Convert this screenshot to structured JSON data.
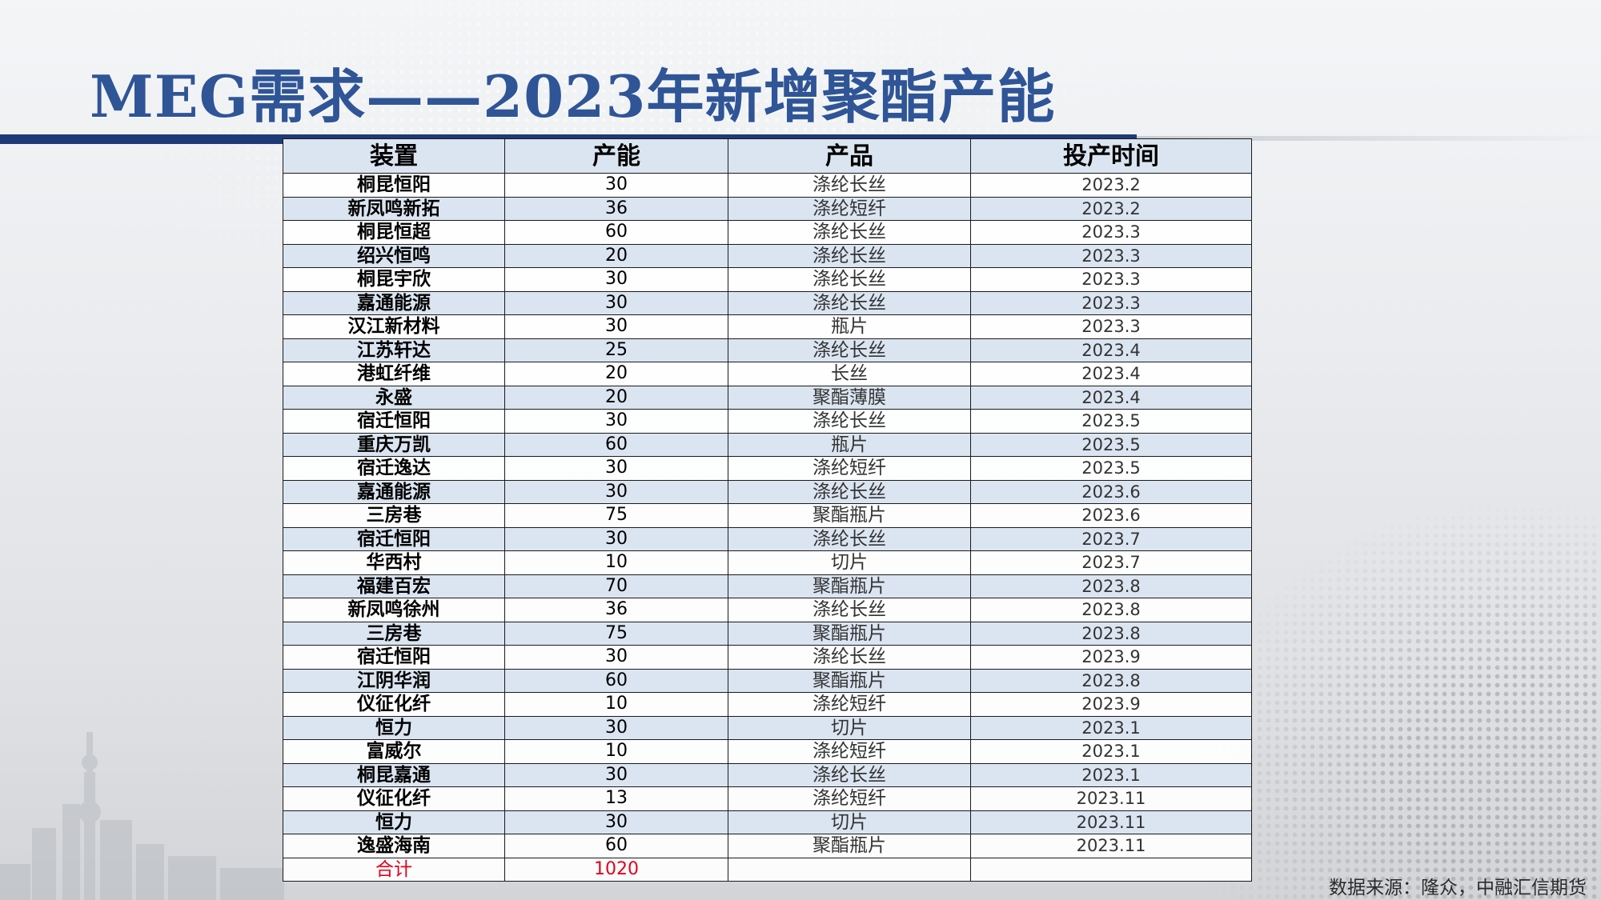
{
  "title": "MEG需求——2023年新增聚酯产能",
  "table": {
    "headers": [
      "装置",
      "产能",
      "产品",
      "投产时间"
    ],
    "rows": [
      [
        "桐昆恒阳",
        "30",
        "涤纶长丝",
        "2023.2"
      ],
      [
        "新凤鸣新拓",
        "36",
        "涤纶短纤",
        "2023.2"
      ],
      [
        "桐昆恒超",
        "60",
        "涤纶长丝",
        "2023.3"
      ],
      [
        "绍兴恒鸣",
        "20",
        "涤纶长丝",
        "2023.3"
      ],
      [
        "桐昆宇欣",
        "30",
        "涤纶长丝",
        "2023.3"
      ],
      [
        "嘉通能源",
        "30",
        "涤纶长丝",
        "2023.3"
      ],
      [
        "汉江新材料",
        "30",
        "瓶片",
        "2023.3"
      ],
      [
        "江苏轩达",
        "25",
        "涤纶长丝",
        "2023.4"
      ],
      [
        "港虹纤维",
        "20",
        "长丝",
        "2023.4"
      ],
      [
        "永盛",
        "20",
        "聚酯薄膜",
        "2023.4"
      ],
      [
        "宿迁恒阳",
        "30",
        "涤纶长丝",
        "2023.5"
      ],
      [
        "重庆万凯",
        "60",
        "瓶片",
        "2023.5"
      ],
      [
        "宿迁逸达",
        "30",
        "涤纶短纤",
        "2023.5"
      ],
      [
        "嘉通能源",
        "30",
        "涤纶长丝",
        "2023.6"
      ],
      [
        "三房巷",
        "75",
        "聚酯瓶片",
        "2023.6"
      ],
      [
        "宿迁恒阳",
        "30",
        "涤纶长丝",
        "2023.7"
      ],
      [
        "华西村",
        "10",
        "切片",
        "2023.7"
      ],
      [
        "福建百宏",
        "70",
        "聚酯瓶片",
        "2023.8"
      ],
      [
        "新凤鸣徐州",
        "36",
        "涤纶长丝",
        "2023.8"
      ],
      [
        "三房巷",
        "75",
        "聚酯瓶片",
        "2023.8"
      ],
      [
        "宿迁恒阳",
        "30",
        "涤纶长丝",
        "2023.9"
      ],
      [
        "江阴华润",
        "60",
        "聚酯瓶片",
        "2023.8"
      ],
      [
        "仪征化纤",
        "10",
        "涤纶短纤",
        "2023.9"
      ],
      [
        "恒力",
        "30",
        "切片",
        "2023.1"
      ],
      [
        "富威尔",
        "10",
        "涤纶短纤",
        "2023.1"
      ],
      [
        "桐昆嘉通",
        "30",
        "涤纶长丝",
        "2023.1"
      ],
      [
        "仪征化纤",
        "13",
        "涤纶短纤",
        "2023.11"
      ],
      [
        "恒力",
        "30",
        "切片",
        "2023.11"
      ],
      [
        "逸盛海南",
        "60",
        "聚酯瓶片",
        "2023.11"
      ]
    ],
    "total": {
      "label": "合计",
      "capacity": "1020",
      "product": "",
      "date": ""
    }
  },
  "source": "数据来源：隆众，中融汇信期货",
  "colors": {
    "title": "#2f5597",
    "header_bg": "#dbe5f1",
    "rule": "#1f3a78",
    "total_text": "#e3001b"
  }
}
